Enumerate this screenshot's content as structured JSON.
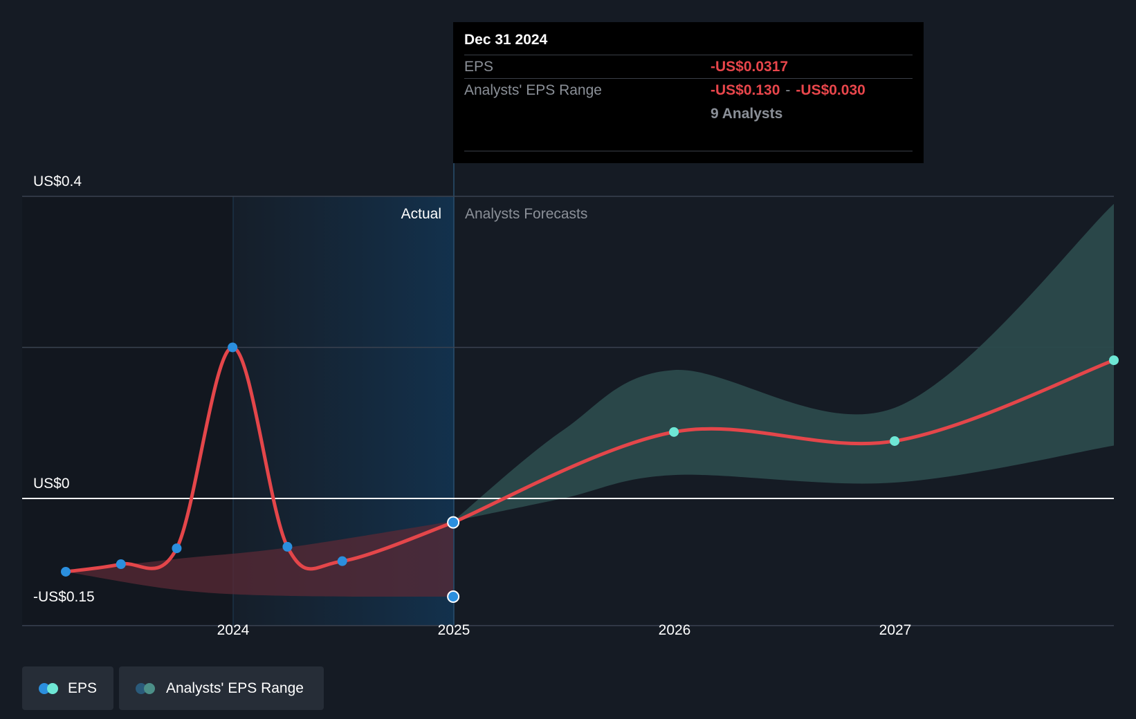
{
  "tooltip": {
    "date": "Dec 31 2024",
    "eps_label": "EPS",
    "eps_value": "-US$0.0317",
    "range_label": "Analysts' EPS Range",
    "range_low": "-US$0.130",
    "range_sep": "-",
    "range_high": "-US$0.030",
    "analysts": "9 Analysts"
  },
  "regions": {
    "actual_label": "Actual",
    "forecast_label": "Analysts Forecasts"
  },
  "legend": {
    "eps_label": "EPS",
    "range_label": "Analysts' EPS Range"
  },
  "colors": {
    "background": "#151b24",
    "positive_actual": "#2b8fde",
    "negative_actual": "#e4464a",
    "forecast": "#6ee7d5",
    "forecast_band": "#2b4a4c",
    "actual_band": "#5a2a35",
    "grid": "#3a4250",
    "zero_line": "#ffffff"
  },
  "chart_data": {
    "type": "line",
    "y_axis": {
      "ylim": [
        -0.15,
        0.4
      ],
      "labels": [
        "US$0.4",
        "US$0",
        "-US$0.15"
      ],
      "values": [
        0.4,
        0,
        -0.15
      ]
    },
    "x_axis": {
      "ticks": [
        "2024",
        "2025",
        "2026",
        "2027"
      ],
      "tick_dates": [
        "2024-01-01",
        "2025-01-01",
        "2026-01-01",
        "2027-01-01"
      ],
      "xlim": [
        "2023-01-01",
        "2027-12-31"
      ]
    },
    "series": [
      {
        "name": "EPS",
        "points": [
          {
            "x": "2023-03-31",
            "y": -0.097
          },
          {
            "x": "2023-06-30",
            "y": -0.087
          },
          {
            "x": "2023-09-30",
            "y": -0.066
          },
          {
            "x": "2023-12-31",
            "y": 0.2
          },
          {
            "x": "2024-03-31",
            "y": -0.064
          },
          {
            "x": "2024-06-30",
            "y": -0.083
          },
          {
            "x": "2024-12-31",
            "y": -0.0317
          }
        ]
      },
      {
        "name": "EPS forecast",
        "points": [
          {
            "x": "2024-12-31",
            "y": -0.0317
          },
          {
            "x": "2025-12-31",
            "y": 0.088
          },
          {
            "x": "2026-12-31",
            "y": 0.076
          },
          {
            "x": "2027-12-31",
            "y": 0.183
          }
        ]
      }
    ],
    "ranges": [
      {
        "name": "Analysts' EPS Range (actual period)",
        "low": [
          {
            "x": "2023-03-31",
            "y": -0.097
          },
          {
            "x": "2023-09-30",
            "y": -0.121
          },
          {
            "x": "2024-03-31",
            "y": -0.129
          },
          {
            "x": "2024-12-31",
            "y": -0.13
          }
        ],
        "high": [
          {
            "x": "2023-03-31",
            "y": -0.097
          },
          {
            "x": "2023-09-30",
            "y": -0.08
          },
          {
            "x": "2024-03-31",
            "y": -0.065
          },
          {
            "x": "2024-12-31",
            "y": -0.03
          }
        ]
      },
      {
        "name": "Analysts' EPS Range (forecast)",
        "low": [
          {
            "x": "2024-12-31",
            "y": -0.03
          },
          {
            "x": "2025-06-30",
            "y": 0.0
          },
          {
            "x": "2025-12-31",
            "y": 0.031
          },
          {
            "x": "2026-12-31",
            "y": 0.021
          },
          {
            "x": "2027-12-31",
            "y": 0.07
          }
        ],
        "high": [
          {
            "x": "2024-12-31",
            "y": -0.03
          },
          {
            "x": "2025-06-30",
            "y": 0.09
          },
          {
            "x": "2025-12-31",
            "y": 0.17
          },
          {
            "x": "2026-12-31",
            "y": 0.12
          },
          {
            "x": "2027-12-31",
            "y": 0.39
          }
        ]
      }
    ],
    "markers": [
      {
        "x": "2024-12-31",
        "y": -0.13
      }
    ],
    "grid": true,
    "legend": "bottom-left"
  }
}
